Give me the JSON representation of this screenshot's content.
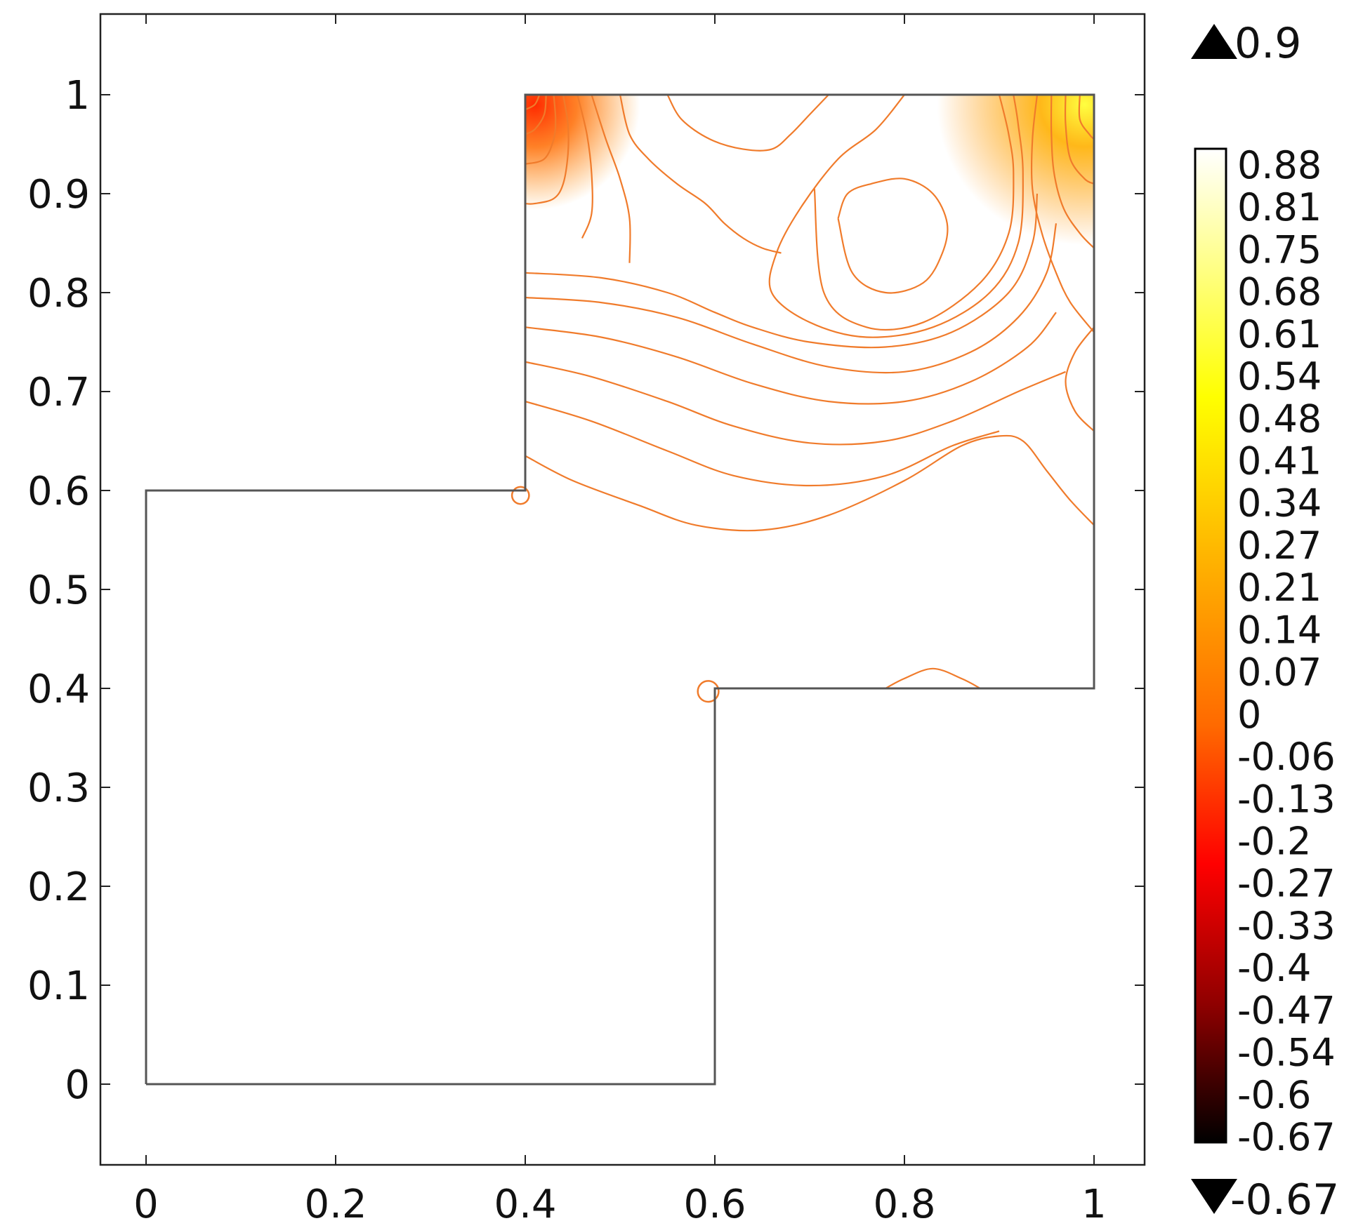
{
  "chart_data": {
    "type": "contour",
    "title": "",
    "xlabel": "",
    "ylabel": "",
    "xlim": [
      -0.12,
      1.13
    ],
    "ylim": [
      -0.08,
      1.08
    ],
    "x_ticks": [
      "0",
      "0.2",
      "0.4",
      "0.6",
      "0.8",
      "1"
    ],
    "x_tick_values": [
      0,
      0.2,
      0.4,
      0.6,
      0.8,
      1
    ],
    "y_ticks": [
      "0",
      "0.1",
      "0.2",
      "0.3",
      "0.4",
      "0.5",
      "0.6",
      "0.7",
      "0.8",
      "0.9",
      "1"
    ],
    "y_tick_values": [
      0,
      0.1,
      0.2,
      0.3,
      0.4,
      0.5,
      0.6,
      0.7,
      0.8,
      0.9,
      1
    ],
    "domain_outline": [
      [
        0,
        0
      ],
      [
        0.6,
        0
      ],
      [
        0.6,
        0.4
      ],
      [
        1,
        0.4
      ],
      [
        1,
        1
      ],
      [
        0.4,
        1
      ],
      [
        0.4,
        0.6
      ],
      [
        0,
        0.6
      ],
      [
        0,
        0
      ]
    ],
    "contour_color": "#f07b2b",
    "contour_lines": [
      [
        [
          0.4,
          0.635
        ],
        [
          0.45,
          0.61
        ],
        [
          0.52,
          0.585
        ],
        [
          0.58,
          0.565
        ],
        [
          0.65,
          0.56
        ],
        [
          0.72,
          0.575
        ],
        [
          0.8,
          0.61
        ],
        [
          0.86,
          0.645
        ],
        [
          0.9,
          0.655
        ],
        [
          0.925,
          0.65
        ],
        [
          0.95,
          0.62
        ],
        [
          0.975,
          0.59
        ],
        [
          1,
          0.565
        ]
      ],
      [
        [
          0.4,
          0.69
        ],
        [
          0.47,
          0.67
        ],
        [
          0.55,
          0.64
        ],
        [
          0.62,
          0.615
        ],
        [
          0.7,
          0.605
        ],
        [
          0.78,
          0.615
        ],
        [
          0.85,
          0.645
        ],
        [
          0.9,
          0.66
        ]
      ],
      [
        [
          0.4,
          0.73
        ],
        [
          0.47,
          0.715
        ],
        [
          0.55,
          0.69
        ],
        [
          0.62,
          0.665
        ],
        [
          0.7,
          0.648
        ],
        [
          0.78,
          0.65
        ],
        [
          0.85,
          0.67
        ],
        [
          0.92,
          0.7
        ],
        [
          0.97,
          0.72
        ]
      ],
      [
        [
          0.4,
          0.765
        ],
        [
          0.48,
          0.755
        ],
        [
          0.56,
          0.735
        ],
        [
          0.64,
          0.708
        ],
        [
          0.72,
          0.69
        ],
        [
          0.8,
          0.69
        ],
        [
          0.87,
          0.71
        ],
        [
          0.93,
          0.745
        ],
        [
          0.96,
          0.78
        ]
      ],
      [
        [
          0.4,
          0.795
        ],
        [
          0.48,
          0.79
        ],
        [
          0.56,
          0.775
        ],
        [
          0.64,
          0.748
        ],
        [
          0.72,
          0.725
        ],
        [
          0.8,
          0.72
        ],
        [
          0.87,
          0.74
        ],
        [
          0.92,
          0.775
        ],
        [
          0.95,
          0.82
        ],
        [
          0.96,
          0.87
        ]
      ],
      [
        [
          0.4,
          0.82
        ],
        [
          0.48,
          0.815
        ],
        [
          0.55,
          0.8
        ],
        [
          0.6,
          0.78
        ],
        [
          0.64,
          0.765
        ],
        [
          0.7,
          0.75
        ],
        [
          0.78,
          0.745
        ],
        [
          0.85,
          0.76
        ],
        [
          0.91,
          0.8
        ],
        [
          0.935,
          0.85
        ],
        [
          0.94,
          0.9
        ]
      ],
      [
        [
          0.705,
          0.905
        ],
        [
          0.715,
          0.8
        ],
        [
          0.76,
          0.765
        ],
        [
          0.82,
          0.77
        ],
        [
          0.88,
          0.81
        ],
        [
          0.91,
          0.86
        ],
        [
          0.915,
          0.92
        ],
        [
          0.91,
          0.96
        ],
        [
          0.9,
          1
        ]
      ],
      [
        [
          0.8,
          1
        ],
        [
          0.77,
          0.965
        ],
        [
          0.73,
          0.935
        ],
        [
          0.69,
          0.885
        ],
        [
          0.665,
          0.84
        ],
        [
          0.66,
          0.8
        ],
        [
          0.7,
          0.77
        ],
        [
          0.76,
          0.755
        ],
        [
          0.83,
          0.765
        ],
        [
          0.89,
          0.8
        ],
        [
          0.92,
          0.85
        ],
        [
          0.925,
          0.92
        ],
        [
          0.92,
          0.97
        ],
        [
          0.915,
          1
        ]
      ],
      [
        [
          0.73,
          0.875
        ],
        [
          0.745,
          0.82
        ],
        [
          0.78,
          0.8
        ],
        [
          0.82,
          0.81
        ],
        [
          0.84,
          0.84
        ],
        [
          0.845,
          0.87
        ],
        [
          0.83,
          0.9
        ],
        [
          0.8,
          0.915
        ],
        [
          0.765,
          0.91
        ],
        [
          0.74,
          0.9
        ],
        [
          0.73,
          0.875
        ]
      ],
      [
        [
          0.5,
          1
        ],
        [
          0.51,
          0.96
        ],
        [
          0.53,
          0.935
        ],
        [
          0.56,
          0.91
        ],
        [
          0.59,
          0.89
        ],
        [
          0.61,
          0.87
        ],
        [
          0.63,
          0.855
        ],
        [
          0.65,
          0.845
        ],
        [
          0.67,
          0.84
        ]
      ],
      [
        [
          0.55,
          1
        ],
        [
          0.565,
          0.975
        ],
        [
          0.595,
          0.955
        ],
        [
          0.63,
          0.945
        ],
        [
          0.66,
          0.945
        ],
        [
          0.68,
          0.96
        ],
        [
          0.7,
          0.98
        ],
        [
          0.72,
          1
        ]
      ],
      [
        [
          0.47,
          1
        ],
        [
          0.485,
          0.955
        ],
        [
          0.5,
          0.915
        ],
        [
          0.51,
          0.875
        ],
        [
          0.51,
          0.83
        ]
      ],
      [
        [
          0.455,
          1
        ],
        [
          0.465,
          0.96
        ],
        [
          0.47,
          0.92
        ],
        [
          0.47,
          0.88
        ],
        [
          0.46,
          0.855
        ]
      ],
      [
        [
          0.44,
          1
        ],
        [
          0.445,
          0.97
        ],
        [
          0.445,
          0.94
        ],
        [
          0.44,
          0.91
        ],
        [
          0.43,
          0.895
        ],
        [
          0.41,
          0.89
        ],
        [
          0.4,
          0.89
        ]
      ],
      [
        [
          0.43,
          1
        ],
        [
          0.432,
          0.975
        ],
        [
          0.43,
          0.955
        ],
        [
          0.42,
          0.935
        ],
        [
          0.4,
          0.93
        ]
      ],
      [
        [
          0.422,
          1
        ],
        [
          0.42,
          0.98
        ],
        [
          0.41,
          0.965
        ],
        [
          0.4,
          0.96
        ]
      ],
      [
        [
          0.415,
          1
        ],
        [
          0.41,
          0.99
        ],
        [
          0.4,
          0.985
        ]
      ],
      [
        [
          0.94,
          1
        ],
        [
          0.935,
          0.955
        ],
        [
          0.935,
          0.905
        ],
        [
          0.945,
          0.86
        ],
        [
          0.96,
          0.82
        ],
        [
          0.975,
          0.79
        ],
        [
          1,
          0.76
        ]
      ],
      [
        [
          0.955,
          1
        ],
        [
          0.955,
          0.96
        ],
        [
          0.958,
          0.92
        ],
        [
          0.968,
          0.885
        ],
        [
          0.985,
          0.86
        ],
        [
          1,
          0.845
        ]
      ],
      [
        [
          0.97,
          1
        ],
        [
          0.97,
          0.97
        ],
        [
          0.975,
          0.935
        ],
        [
          0.99,
          0.915
        ],
        [
          1,
          0.91
        ]
      ],
      [
        [
          0.985,
          1
        ],
        [
          0.985,
          0.975
        ],
        [
          0.995,
          0.96
        ],
        [
          1,
          0.955
        ]
      ],
      [
        [
          1,
          0.765
        ],
        [
          0.98,
          0.74
        ],
        [
          0.97,
          0.71
        ],
        [
          0.98,
          0.68
        ],
        [
          1,
          0.66
        ]
      ],
      [
        [
          0.78,
          0.4
        ],
        [
          0.8,
          0.41
        ],
        [
          0.83,
          0.42
        ],
        [
          0.86,
          0.41
        ],
        [
          0.88,
          0.4
        ]
      ]
    ],
    "corner_circles": [
      {
        "cx": 0.395,
        "cy": 0.595,
        "r": 0.009
      },
      {
        "cx": 0.593,
        "cy": 0.397,
        "r": 0.011
      }
    ],
    "hot_spots": [
      {
        "cx": 0.41,
        "cy": 0.99,
        "value": -0.3
      },
      {
        "cx": 0.99,
        "cy": 0.99,
        "value": 0.7
      }
    ],
    "colorbar": {
      "max_label": "0.9",
      "min_label": "-0.67",
      "labels": [
        "0.88",
        "0.81",
        "0.75",
        "0.68",
        "0.61",
        "0.54",
        "0.48",
        "0.41",
        "0.34",
        "0.27",
        "0.21",
        "0.14",
        "0.07",
        "0",
        "-0.06",
        "-0.13",
        "-0.2",
        "-0.27",
        "-0.33",
        "-0.4",
        "-0.47",
        "-0.54",
        "-0.6",
        "-0.67"
      ],
      "colormap": "heat",
      "colors": [
        "#ffffff",
        "#ffff99",
        "#ffff00",
        "#ffb000",
        "#ff7000",
        "#ff0000",
        "#900000",
        "#000000"
      ]
    }
  }
}
